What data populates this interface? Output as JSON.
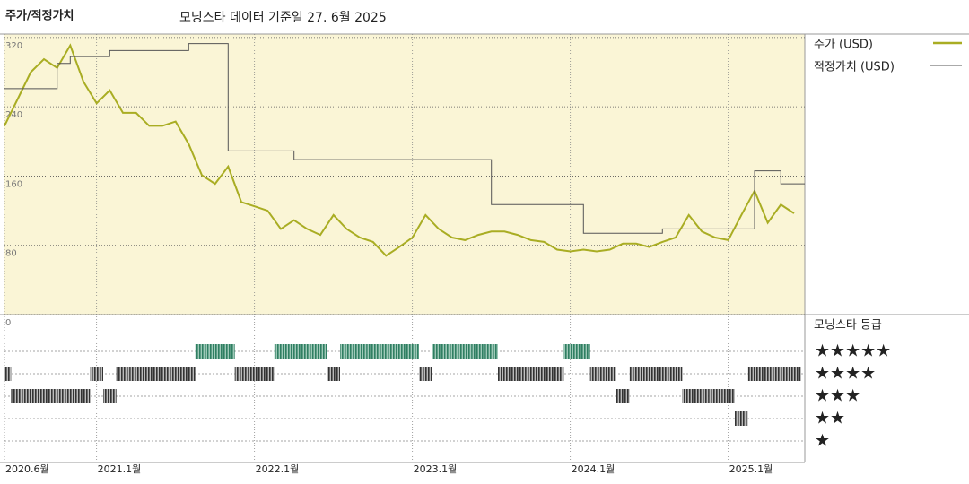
{
  "chart_data": {
    "type": "line",
    "title": "주가/적정가치",
    "subtitle": "모닝스타 데이터 기준일 27. 6월 2025",
    "x": [
      "2020.6",
      "2020.7",
      "2020.8",
      "2020.9",
      "2020.10",
      "2020.11",
      "2020.12",
      "2021.1",
      "2021.2",
      "2021.3",
      "2021.4",
      "2021.5",
      "2021.6",
      "2021.7",
      "2021.8",
      "2021.9",
      "2021.10",
      "2021.11",
      "2021.12",
      "2022.1",
      "2022.2",
      "2022.3",
      "2022.4",
      "2022.5",
      "2022.6",
      "2022.7",
      "2022.8",
      "2022.9",
      "2022.10",
      "2022.11",
      "2022.12",
      "2023.1",
      "2023.2",
      "2023.3",
      "2023.4",
      "2023.5",
      "2023.6",
      "2023.7",
      "2023.8",
      "2023.9",
      "2023.10",
      "2023.11",
      "2023.12",
      "2024.1",
      "2024.2",
      "2024.3",
      "2024.4",
      "2024.5",
      "2024.6",
      "2024.7",
      "2024.8",
      "2024.9",
      "2024.10",
      "2024.11",
      "2024.12",
      "2025.1",
      "2025.2",
      "2025.3",
      "2025.4",
      "2025.5",
      "2025.6"
    ],
    "series": [
      {
        "name": "주가 (USD)",
        "color": "#a9ad23",
        "values": [
          218,
          249,
          280,
          295,
          285,
          311,
          269,
          244,
          259,
          233,
          233,
          218,
          218,
          223,
          197,
          161,
          151,
          171,
          130,
          125,
          120,
          99,
          109,
          99,
          92,
          115,
          99,
          89,
          84,
          68,
          78,
          89,
          115,
          99,
          89,
          86,
          92,
          96,
          96,
          92,
          86,
          84,
          75,
          73,
          75,
          73,
          75,
          82,
          82,
          78,
          84,
          89,
          115,
          96,
          89,
          86,
          115,
          143,
          106,
          127,
          117
        ]
      },
      {
        "name": "적정가치 (USD)",
        "color": "#555555",
        "step": true,
        "values": [
          261,
          261,
          261,
          261,
          290,
          298,
          298,
          298,
          305,
          305,
          305,
          305,
          305,
          305,
          313,
          313,
          313,
          189,
          189,
          189,
          189,
          189,
          179,
          179,
          179,
          179,
          179,
          179,
          179,
          179,
          179,
          179,
          179,
          179,
          179,
          179,
          179,
          127,
          127,
          127,
          127,
          127,
          127,
          127,
          94,
          94,
          94,
          94,
          94,
          94,
          99,
          99,
          99,
          99,
          99,
          99,
          99,
          166,
          166,
          151,
          151
        ]
      }
    ],
    "ylim": [
      0,
      324
    ],
    "yticks": [
      0,
      80,
      160,
      240,
      320
    ],
    "xticks": [
      {
        "value": "2020.6",
        "label": "2020.6월"
      },
      {
        "value": "2021.1",
        "label": "2021.1월"
      },
      {
        "value": "2022.1",
        "label": "2022.1월"
      },
      {
        "value": "2023.1",
        "label": "2023.1월"
      },
      {
        "value": "2024.1",
        "label": "2024.1월"
      },
      {
        "value": "2025.1",
        "label": "2025.1월"
      }
    ],
    "grid": true,
    "legend": "right",
    "ratings": {
      "name": "모닝스타 등급",
      "ticks": [
        {
          "value": 5,
          "label": "★★★★★"
        },
        {
          "value": 4,
          "label": "★★★★"
        },
        {
          "value": 3,
          "label": "★★★"
        },
        {
          "value": 2,
          "label": "★★"
        },
        {
          "value": 1,
          "label": "★"
        }
      ],
      "values": [
        4,
        3,
        3,
        3,
        3,
        3,
        3,
        4,
        3,
        4,
        4,
        4,
        4,
        4,
        4,
        5,
        5,
        5,
        4,
        4,
        4,
        5,
        5,
        5,
        5,
        4,
        5,
        5,
        5,
        5,
        5,
        5,
        4,
        5,
        5,
        5,
        5,
        5,
        4,
        4,
        4,
        4,
        4,
        5,
        5,
        4,
        4,
        3,
        4,
        4,
        4,
        4,
        3,
        3,
        3,
        3,
        2,
        4,
        4,
        4,
        4
      ]
    }
  }
}
